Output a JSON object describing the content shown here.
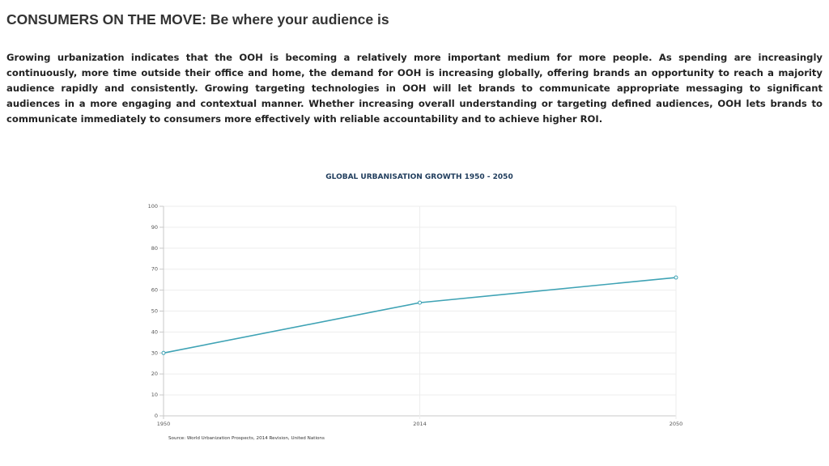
{
  "page": {
    "title": "CONSUMERS ON THE MOVE: Be where your audience is",
    "body": "Growing urbanization indicates that the OOH is becoming a relatively more important medium for more people. As spending are increasingly continuously, more time outside their office and home, the demand for OOH is increasing globally, offering brands an opportunity to reach a majority audience rapidly and consistently. Growing targeting technologies in OOH will let brands to communicate appropriate messaging to significant audiences in a more engaging and contextual manner. Whether increasing overall understanding or targeting defined audiences, OOH lets brands to communicate immediately to consumers more effectively with reliable accountability and to achieve higher ROI."
  },
  "chart_data": {
    "type": "line",
    "title": "GLOBAL URBANISATION GROWTH 1950 - 2050",
    "xlabel": "",
    "ylabel": "",
    "x": [
      "1950",
      "2014",
      "2050"
    ],
    "series": [
      {
        "values": [
          30,
          54,
          66
        ],
        "color": "#3fa3b5"
      }
    ],
    "ylim": [
      0,
      100
    ],
    "yticks": [
      0,
      10,
      20,
      30,
      40,
      50,
      60,
      70,
      80,
      90,
      100
    ],
    "grid": true,
    "source": "Source: World Urbanization Prospects, 2014 Revision, United Nations"
  }
}
